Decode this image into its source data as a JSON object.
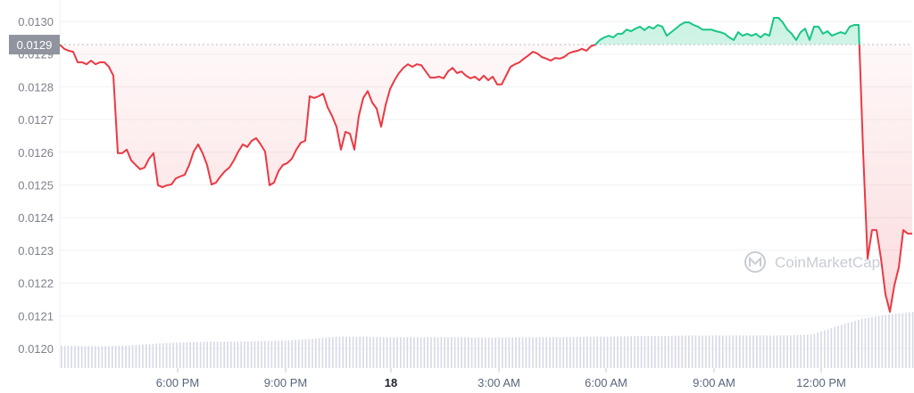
{
  "chart_data": {
    "type": "line",
    "title": "",
    "xlabel": "",
    "ylabel": "",
    "ylim": [
      0.012,
      0.013
    ],
    "y_ticks": [
      "0.0120",
      "0.0121",
      "0.0122",
      "0.0123",
      "0.0124",
      "0.0125",
      "0.0126",
      "0.0127",
      "0.0128",
      "0.0129",
      "0.0130"
    ],
    "x_ticks": [
      {
        "label": "6:00 PM",
        "bold": false
      },
      {
        "label": "9:00 PM",
        "bold": false
      },
      {
        "label": "18",
        "bold": true
      },
      {
        "label": "3:00 AM",
        "bold": false
      },
      {
        "label": "6:00 AM",
        "bold": false
      },
      {
        "label": "9:00 AM",
        "bold": false
      },
      {
        "label": "12:00 PM",
        "bold": false
      }
    ],
    "x_range": [
      "2:45 PM (17)",
      "2:30 PM (18)"
    ],
    "grid": true,
    "baseline": {
      "value": 0.012929,
      "label": "0.0129"
    },
    "colors": {
      "above": "#16c784",
      "below": "#ea3943",
      "volume": "#d6d9e6",
      "baseline_label_bg": "#8f949e"
    },
    "watermark": "CoinMarketCap",
    "prices": [
      0.012929,
      0.012916,
      0.01291,
      0.012907,
      0.012875,
      0.012875,
      0.012869,
      0.01288,
      0.012869,
      0.012875,
      0.012875,
      0.012861,
      0.012834,
      0.012597,
      0.012597,
      0.012608,
      0.012575,
      0.012561,
      0.012548,
      0.012553,
      0.01258,
      0.012597,
      0.012499,
      0.012493,
      0.012499,
      0.012501,
      0.01252,
      0.012526,
      0.012531,
      0.012561,
      0.012602,
      0.012624,
      0.012597,
      0.012561,
      0.012501,
      0.012507,
      0.012526,
      0.012542,
      0.012553,
      0.012575,
      0.012602,
      0.012624,
      0.012616,
      0.012635,
      0.012643,
      0.012624,
      0.012602,
      0.012499,
      0.012507,
      0.012542,
      0.012561,
      0.012567,
      0.01258,
      0.012608,
      0.012629,
      0.012635,
      0.012771,
      0.012766,
      0.012771,
      0.012779,
      0.012738,
      0.012711,
      0.012678,
      0.012608,
      0.012662,
      0.012657,
      0.012608,
      0.012711,
      0.012766,
      0.012787,
      0.012752,
      0.012733,
      0.012678,
      0.012744,
      0.012793,
      0.01282,
      0.012842,
      0.012858,
      0.012869,
      0.012861,
      0.012869,
      0.012866,
      0.012847,
      0.012828,
      0.012828,
      0.012831,
      0.012826,
      0.012847,
      0.012858,
      0.012842,
      0.012847,
      0.012834,
      0.012826,
      0.012831,
      0.01282,
      0.012834,
      0.01282,
      0.012831,
      0.012807,
      0.012807,
      0.012834,
      0.012861,
      0.012869,
      0.012875,
      0.012886,
      0.012896,
      0.012907,
      0.012902,
      0.012891,
      0.012886,
      0.01288,
      0.012888,
      0.012886,
      0.012891,
      0.012902,
      0.012907,
      0.01291,
      0.012916,
      0.01291,
      0.012924,
      0.012929,
      0.012943,
      0.012951,
      0.012956,
      0.012951,
      0.012962,
      0.012962,
      0.012975,
      0.01297,
      0.012978,
      0.012984,
      0.012973,
      0.012984,
      0.012978,
      0.012989,
      0.012984,
      0.012956,
      0.012967,
      0.012978,
      0.012989,
      0.012997,
      0.012997,
      0.012989,
      0.012984,
      0.012975,
      0.012975,
      0.012975,
      0.01297,
      0.012967,
      0.012962,
      0.012951,
      0.012943,
      0.012967,
      0.012956,
      0.012962,
      0.012956,
      0.012962,
      0.012951,
      0.012962,
      0.012956,
      0.013011,
      0.013011,
      0.012997,
      0.012975,
      0.012962,
      0.012943,
      0.012967,
      0.012978,
      0.012943,
      0.012984,
      0.012984,
      0.012962,
      0.01297,
      0.012956,
      0.012962,
      0.012967,
      0.012962,
      0.012984,
      0.012989,
      0.012989,
      0.012602,
      0.012275,
      0.012362,
      0.012362,
      0.012275,
      0.012166,
      0.012112,
      0.012193,
      0.012248,
      0.012362,
      0.012351,
      0.012351
    ],
    "volume_relative": [
      0.4,
      0.39,
      0.39,
      0.41,
      0.44,
      0.46,
      0.47,
      0.47,
      0.48,
      0.49,
      0.52,
      0.56,
      0.56,
      0.55,
      0.55,
      0.55,
      0.55,
      0.54,
      0.55,
      0.55,
      0.55,
      0.56,
      0.56,
      0.57,
      0.57,
      0.58,
      0.58,
      0.58,
      0.58,
      0.58,
      0.6,
      0.75,
      0.88,
      0.95,
      1.0
    ]
  }
}
